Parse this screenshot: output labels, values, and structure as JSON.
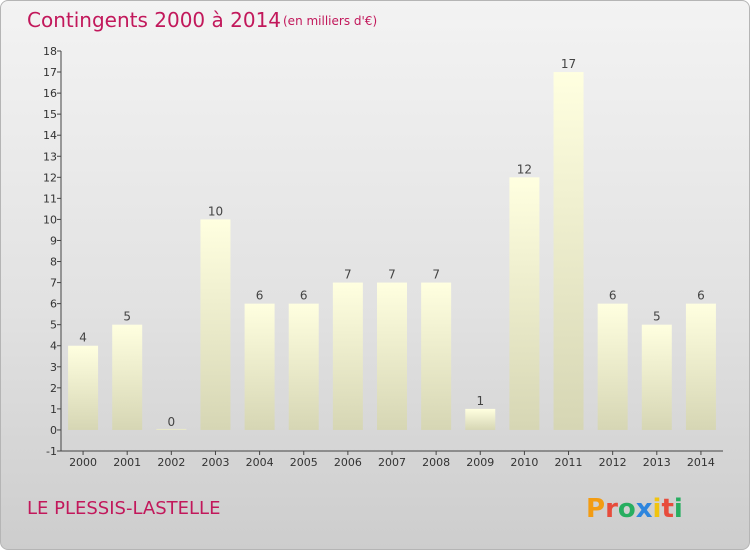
{
  "header": {
    "title": "Contingents 2000 à 2014",
    "subtitle": "(en milliers d'€)"
  },
  "footer": {
    "place": "LE PLESSIS-LASTELLE",
    "logo_text": "Proxiti"
  },
  "colors": {
    "title": "#c2185b",
    "bar_top": "#ffffe0",
    "bar_bottom": "#d6d6b4",
    "logo_letters": [
      "#f39c12",
      "#e74c3c",
      "#27ae60",
      "#2e86de",
      "#f1c40f",
      "#e74c3c",
      "#27ae60"
    ]
  },
  "chart_data": {
    "type": "bar",
    "categories": [
      "2000",
      "2001",
      "2002",
      "2003",
      "2004",
      "2005",
      "2006",
      "2007",
      "2008",
      "2009",
      "2010",
      "2011",
      "2012",
      "2013",
      "2014"
    ],
    "values": [
      4,
      5,
      0,
      10,
      6,
      6,
      7,
      7,
      7,
      1,
      12,
      17,
      6,
      5,
      6
    ],
    "ylim": [
      -1,
      18
    ],
    "yticks": [
      -1,
      0,
      1,
      2,
      3,
      4,
      5,
      6,
      7,
      8,
      9,
      10,
      11,
      12,
      13,
      14,
      15,
      16,
      17,
      18
    ],
    "grid": false
  }
}
